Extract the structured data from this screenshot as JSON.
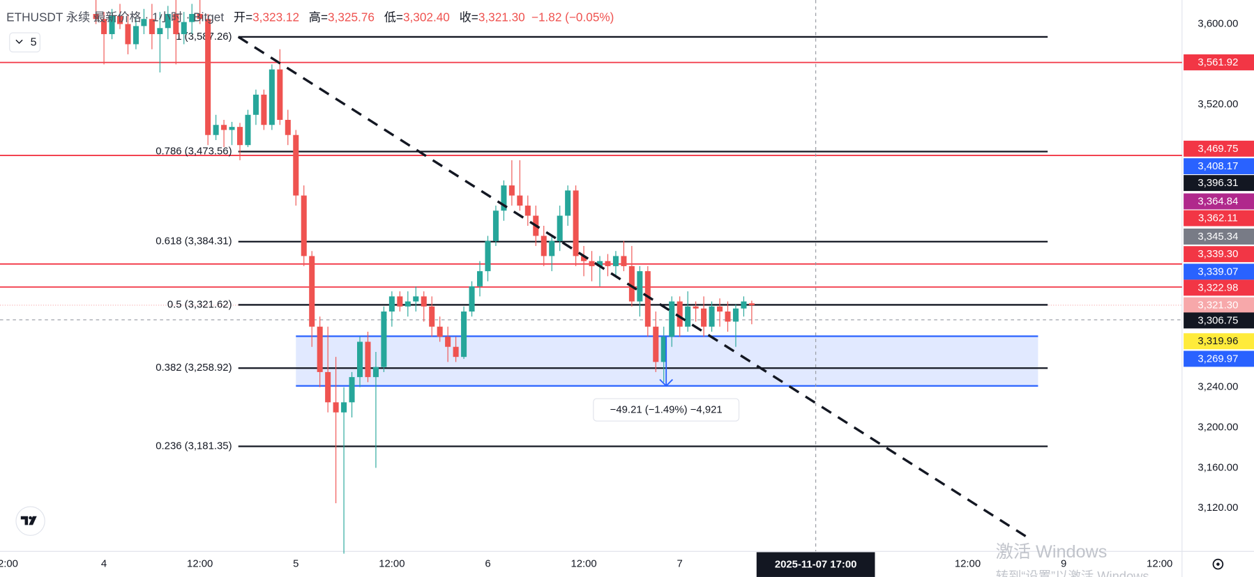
{
  "chart_data": {
    "type": "candlestick",
    "title": "ETHUSDT 永续 最新价格 · 1小时 · Bitget",
    "ohlc_header": [
      {
        "key": "开=",
        "value": "3,323.12"
      },
      {
        "key": "高=",
        "value": "3,325.76"
      },
      {
        "key": "低=",
        "value": "3,302.40"
      },
      {
        "key": "收=",
        "value": "3,321.30"
      }
    ],
    "change": "−1.82 (−0.05%)",
    "indicator_toggle": "5",
    "up_color": "#26a69a",
    "down_color": "#ef5350",
    "xlim": [
      -13,
      134.8
    ],
    "ylim": [
      3077.2,
      3623.8
    ],
    "xticks": [
      {
        "value": -12,
        "label": "2:00"
      },
      {
        "value": 0,
        "label": "4"
      },
      {
        "value": 12,
        "label": "12:00"
      },
      {
        "value": 24,
        "label": "5"
      },
      {
        "value": 36,
        "label": "12:00"
      },
      {
        "value": 48,
        "label": "6"
      },
      {
        "value": 60,
        "label": "12:00"
      },
      {
        "value": 72,
        "label": "7"
      },
      {
        "value": 108,
        "label": "12:00"
      },
      {
        "value": 120,
        "label": "9"
      },
      {
        "value": 132,
        "label": "12:00"
      }
    ],
    "yticks": [
      {
        "value": 3600,
        "label": "3,600.00"
      },
      {
        "value": 3520,
        "label": "3,520.00"
      },
      {
        "value": 3240,
        "label": "3,240.00"
      },
      {
        "value": 3200,
        "label": "3,200.00"
      },
      {
        "value": 3160,
        "label": "3,160.00"
      },
      {
        "value": 3120,
        "label": "3,120.00"
      }
    ],
    "grid": false,
    "x": [
      -1,
      0,
      1,
      2,
      3,
      4,
      5,
      6,
      7,
      8,
      9,
      10,
      11,
      12,
      13,
      14,
      15,
      16,
      17,
      18,
      19,
      20,
      21,
      22,
      23,
      24,
      25,
      26,
      27,
      28,
      29,
      30,
      31,
      32,
      33,
      34,
      35,
      36,
      37,
      38,
      39,
      40,
      41,
      42,
      43,
      44,
      45,
      46,
      47,
      48,
      49,
      50,
      51,
      52,
      53,
      54,
      55,
      56,
      57,
      58,
      59,
      60,
      61,
      62,
      63,
      64,
      65,
      66,
      67,
      68,
      69,
      70,
      71,
      72,
      73,
      74,
      75,
      76,
      77,
      78,
      79,
      80,
      81
    ],
    "candles": [
      [
        3610,
        3625,
        3600,
        3605
      ],
      [
        3605,
        3612,
        3560,
        3590
      ],
      [
        3590,
        3615,
        3585,
        3608
      ],
      [
        3608,
        3620,
        3595,
        3600
      ],
      [
        3600,
        3610,
        3570,
        3580
      ],
      [
        3580,
        3605,
        3575,
        3598
      ],
      [
        3598,
        3615,
        3590,
        3605
      ],
      [
        3605,
        3620,
        3575,
        3590
      ],
      [
        3590,
        3612,
        3552,
        3596
      ],
      [
        3596,
        3618,
        3585,
        3610
      ],
      [
        3610,
        3625,
        3560,
        3590
      ],
      [
        3590,
        3612,
        3580,
        3602
      ],
      [
        3602,
        3620,
        3590,
        3610
      ],
      [
        3610,
        3625,
        3600,
        3605
      ],
      [
        3605,
        3610,
        3480,
        3490
      ],
      [
        3490,
        3510,
        3485,
        3500
      ],
      [
        3500,
        3505,
        3478,
        3495
      ],
      [
        3495,
        3503,
        3480,
        3498
      ],
      [
        3498,
        3502,
        3465,
        3480
      ],
      [
        3480,
        3515,
        3478,
        3510
      ],
      [
        3510,
        3535,
        3500,
        3530
      ],
      [
        3530,
        3535,
        3495,
        3500
      ],
      [
        3500,
        3560,
        3495,
        3555
      ],
      [
        3555,
        3575,
        3500,
        3505
      ],
      [
        3505,
        3515,
        3480,
        3490
      ],
      [
        3490,
        3495,
        3420,
        3430
      ],
      [
        3430,
        3440,
        3360,
        3370
      ],
      [
        3370,
        3375,
        3280,
        3300
      ],
      [
        3300,
        3310,
        3240,
        3255
      ],
      [
        3255,
        3300,
        3215,
        3225
      ],
      [
        3225,
        3270,
        3125,
        3215
      ],
      [
        3215,
        3240,
        3075,
        3225
      ],
      [
        3225,
        3255,
        3210,
        3250
      ],
      [
        3250,
        3290,
        3240,
        3285
      ],
      [
        3285,
        3295,
        3245,
        3250
      ],
      [
        3250,
        3275,
        3160,
        3260
      ],
      [
        3260,
        3320,
        3255,
        3315
      ],
      [
        3315,
        3335,
        3300,
        3330
      ],
      [
        3330,
        3335,
        3315,
        3320
      ],
      [
        3320,
        3335,
        3310,
        3325
      ],
      [
        3325,
        3340,
        3315,
        3330
      ],
      [
        3330,
        3335,
        3305,
        3320
      ],
      [
        3320,
        3330,
        3290,
        3300
      ],
      [
        3300,
        3310,
        3285,
        3290
      ],
      [
        3290,
        3300,
        3265,
        3280
      ],
      [
        3280,
        3290,
        3265,
        3270
      ],
      [
        3270,
        3320,
        3268,
        3315
      ],
      [
        3315,
        3345,
        3310,
        3340
      ],
      [
        3340,
        3365,
        3330,
        3355
      ],
      [
        3355,
        3390,
        3345,
        3385
      ],
      [
        3385,
        3420,
        3380,
        3415
      ],
      [
        3415,
        3445,
        3405,
        3440
      ],
      [
        3440,
        3465,
        3420,
        3430
      ],
      [
        3430,
        3465,
        3415,
        3420
      ],
      [
        3420,
        3430,
        3400,
        3410
      ],
      [
        3410,
        3420,
        3380,
        3390
      ],
      [
        3390,
        3400,
        3360,
        3370
      ],
      [
        3370,
        3390,
        3355,
        3385
      ],
      [
        3385,
        3420,
        3375,
        3410
      ],
      [
        3410,
        3440,
        3400,
        3435
      ],
      [
        3435,
        3440,
        3360,
        3370
      ],
      [
        3370,
        3380,
        3350,
        3365
      ],
      [
        3365,
        3375,
        3345,
        3360
      ],
      [
        3360,
        3370,
        3340,
        3365
      ],
      [
        3365,
        3372,
        3350,
        3360
      ],
      [
        3360,
        3375,
        3350,
        3370
      ],
      [
        3370,
        3385,
        3355,
        3360
      ],
      [
        3360,
        3380,
        3320,
        3325
      ],
      [
        3325,
        3360,
        3310,
        3355
      ],
      [
        3355,
        3360,
        3290,
        3300
      ],
      [
        3300,
        3315,
        3255,
        3265
      ],
      [
        3265,
        3300,
        3245,
        3290
      ],
      [
        3290,
        3330,
        3280,
        3325
      ],
      [
        3325,
        3330,
        3290,
        3300
      ],
      [
        3300,
        3335,
        3295,
        3320
      ],
      [
        3320,
        3325,
        3305,
        3318
      ],
      [
        3318,
        3330,
        3290,
        3300
      ],
      [
        3300,
        3325,
        3295,
        3320
      ],
      [
        3320,
        3328,
        3300,
        3315
      ],
      [
        3315,
        3325,
        3295,
        3305
      ],
      [
        3305,
        3322,
        3280,
        3318
      ],
      [
        3318,
        3330,
        3310,
        3325
      ],
      [
        3323.12,
        3325.76,
        3302.4,
        3321.3
      ]
    ],
    "fib_x": [
      16.8,
      118
    ],
    "fib_levels": [
      {
        "price": 3587.26,
        "label": "1 (3,587.26)"
      },
      {
        "price": 3473.56,
        "label": "0.786 (3,473.56)"
      },
      {
        "price": 3384.31,
        "label": "0.618 (3,384.31)"
      },
      {
        "price": 3321.62,
        "label": "0.5 (3,321.62)"
      },
      {
        "price": 3258.92,
        "label": "0.382 (3,258.92)"
      },
      {
        "price": 3181.35,
        "label": "0.236 (3,181.35)"
      }
    ],
    "horizontal_lines": {
      "color": "#f23645",
      "prices": [
        3561.92,
        3469.75,
        3362.11,
        3339.3
      ]
    },
    "trendline": {
      "x": [
        16.8,
        115.5
      ],
      "y": [
        3587.26,
        3091
      ]
    },
    "range_box": {
      "x": [
        24,
        116.8
      ],
      "y": [
        3290.5,
        3241.3
      ],
      "color": "#2962ff"
    },
    "measure": {
      "x": 70.3,
      "y": [
        3290.5,
        3241.3
      ],
      "label": "−49.21 (−1.49%) −4,921"
    },
    "current_price": 3321.3,
    "crosshair": {
      "x": 89,
      "y": 3306.75,
      "time_label": "2025-11-07  17:00"
    },
    "badges": [
      {
        "value": 3561.92,
        "label": "3,561.92",
        "color": "#f23645"
      },
      {
        "value": 3469.75,
        "label": "3,469.75",
        "color": "#f23645"
      },
      {
        "value": 3408.17,
        "label": "3,408.17",
        "color": "#2962ff"
      },
      {
        "value": 3396.31,
        "label": "3,396.31",
        "color": "#131722"
      },
      {
        "value": 3364.84,
        "label": "3,364.84",
        "color": "#b0288c"
      },
      {
        "value": 3362.11,
        "label": "3,362.11",
        "color": "#f23645"
      },
      {
        "value": 3345.34,
        "label": "3,345.34",
        "color": "#787b86"
      },
      {
        "value": 3339.3,
        "label": "3,339.30",
        "color": "#f23645"
      },
      {
        "value": 3339.07,
        "label": "3,339.07",
        "color": "#2962ff"
      },
      {
        "value": 3322.98,
        "label": "3,322.98",
        "color": "#f23645"
      },
      {
        "value": 3321.3,
        "label": "3,321.30",
        "color": "#f7a8aa"
      },
      {
        "value": 3306.75,
        "label": "3,306.75",
        "color": "#131722"
      },
      {
        "value": 3319.96,
        "label": "3,319.96",
        "color": "#ffeb3b"
      },
      {
        "value": 3269.97,
        "label": "3,269.97",
        "color": "#2962ff"
      }
    ],
    "watermark": [
      "激活 Windows",
      "转到“设置”以激活 Windows。"
    ]
  }
}
